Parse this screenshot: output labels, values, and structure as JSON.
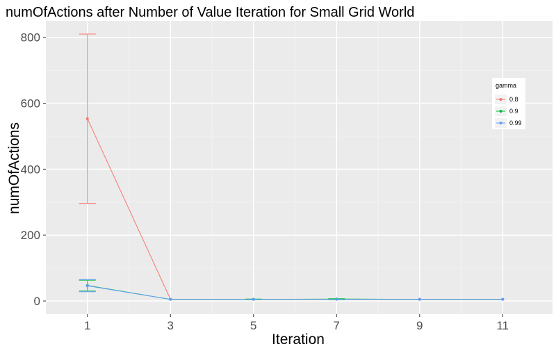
{
  "chart_data": {
    "type": "line",
    "title": "numOfActions after Number of Value Iteration for Small Grid World",
    "xlabel": "Iteration",
    "ylabel": "numOfActions",
    "xlim": [
      0,
      12.2
    ],
    "ylim": [
      -40,
      850
    ],
    "x_ticks": [
      1,
      3,
      5,
      7,
      9,
      11
    ],
    "y_ticks": [
      0,
      200,
      400,
      600,
      800
    ],
    "grid": true,
    "legend": {
      "title": "gamma",
      "placement": "right"
    },
    "series": [
      {
        "name": "0.8",
        "color": "#F8766D",
        "points": [
          {
            "x": 1,
            "y": 553,
            "ymin": 296,
            "ymax": 810
          },
          {
            "x": 3,
            "y": 5
          },
          {
            "x": 5,
            "y": 5
          },
          {
            "x": 7,
            "y": 5
          },
          {
            "x": 9,
            "y": 5
          },
          {
            "x": 11,
            "y": 5
          }
        ]
      },
      {
        "name": "0.9",
        "color": "#00BA38",
        "points": [
          {
            "x": 1,
            "y": 47,
            "ymin": 30,
            "ymax": 63
          },
          {
            "x": 3,
            "y": 5
          },
          {
            "x": 5,
            "y": 5,
            "ymin": 4,
            "ymax": 6
          },
          {
            "x": 7,
            "y": 6,
            "ymin": 4,
            "ymax": 7
          },
          {
            "x": 9,
            "y": 5
          },
          {
            "x": 11,
            "y": 5
          }
        ]
      },
      {
        "name": "0.99",
        "color": "#619CFF",
        "points": [
          {
            "x": 1,
            "y": 46,
            "ymin": 28,
            "ymax": 65
          },
          {
            "x": 3,
            "y": 5
          },
          {
            "x": 5,
            "y": 5
          },
          {
            "x": 7,
            "y": 5
          },
          {
            "x": 9,
            "y": 5
          },
          {
            "x": 11,
            "y": 5
          }
        ]
      }
    ]
  }
}
